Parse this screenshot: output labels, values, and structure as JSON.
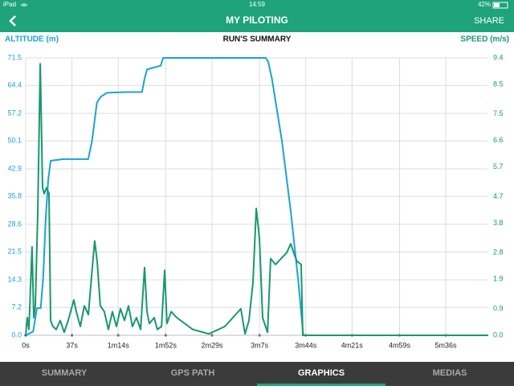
{
  "status_bar": {
    "device": "iPad",
    "time": "14:59",
    "battery": "42%"
  },
  "nav": {
    "title": "MY PILOTING",
    "action": "SHARE"
  },
  "chart_data": {
    "type": "line",
    "title": "RUN'S SUMMARY",
    "y_label": "ALTITUDE (m)",
    "y2_label": "SPEED (m/s)",
    "xlim": [
      0,
      370
    ],
    "xticks": [
      {
        "value": 0,
        "label": "0s"
      },
      {
        "value": 37,
        "label": "37s"
      },
      {
        "value": 74,
        "label": "1m14s"
      },
      {
        "value": 112,
        "label": "1m52s"
      },
      {
        "value": 149,
        "label": "2m29s"
      },
      {
        "value": 187,
        "label": "3m7s"
      },
      {
        "value": 224,
        "label": "3m44s"
      },
      {
        "value": 261,
        "label": "4m21s"
      },
      {
        "value": 299,
        "label": "4m59s"
      },
      {
        "value": 336,
        "label": "5m36s"
      }
    ],
    "ylim": [
      0,
      71.5
    ],
    "yticks": [
      {
        "value": 0,
        "label": "0.0"
      },
      7.2,
      14.3,
      21.5,
      28.6,
      35.8,
      42.9,
      50.1,
      57.2,
      64.4,
      71.5
    ],
    "y2lim": [
      0,
      9.4
    ],
    "y2ticks": [
      {
        "value": 0,
        "label": "0.0"
      },
      0.9,
      1.9,
      2.8,
      3.8,
      4.7,
      5.7,
      6.6,
      7.5,
      8.5,
      9.4
    ],
    "grid": true,
    "y_color": "#1ba3d6",
    "y2_color": "#17996c",
    "series": [
      {
        "color": "#1ba3d6",
        "x": [
          0,
          6,
          9,
          12,
          14,
          16,
          18,
          20,
          30,
          50,
          53,
          57,
          60,
          65,
          80,
          93,
          95,
          97,
          100,
          108,
          110,
          112,
          150,
          192,
          194,
          197,
          205,
          212,
          218,
          222,
          240,
          300,
          370
        ],
        "values": [
          0,
          1,
          7,
          7,
          15,
          30,
          40,
          45,
          45.4,
          45.4,
          50,
          60,
          61.5,
          62.5,
          62.7,
          62.7,
          66,
          68.5,
          68.8,
          69.5,
          71.5,
          71.5,
          71.5,
          71.5,
          70.5,
          66,
          50,
          32,
          14,
          0,
          0,
          0,
          0
        ]
      },
      {
        "color": "#17996c",
        "axis": "y2",
        "x": [
          0,
          1.3,
          2.6,
          5.1,
          6.4,
          7.7,
          9.6,
          11.6,
          13.5,
          14.8,
          16.7,
          18.6,
          19.9,
          21.8,
          24.4,
          27.6,
          30.8,
          34,
          38.5,
          40.5,
          43.7,
          46.9,
          50.1,
          52.7,
          55.2,
          57.2,
          59.7,
          62.9,
          66.1,
          69.4,
          72.6,
          75.8,
          79,
          82.2,
          85.4,
          88.6,
          91.9,
          95.1,
          97,
          98.9,
          102.8,
          105.3,
          108.6,
          111.1,
          113,
          116.3,
          120.8,
          133.6,
          146.5,
          159.3,
          172.1,
          175.4,
          178.6,
          181.8,
          184.4,
          186.9,
          189.5,
          193.4,
          195.9,
          199.8,
          204.3,
          208.8,
          212,
          215.2,
          217.1,
          220.3,
          221.6,
          300,
          370
        ],
        "values": [
          0,
          0.6,
          0.2,
          3,
          0.6,
          1,
          4,
          9.2,
          5,
          4.8,
          5,
          4.8,
          0.5,
          0.3,
          0.2,
          0.5,
          0.1,
          0.5,
          1.2,
          0.8,
          0.3,
          1,
          0.7,
          2,
          3.2,
          2.5,
          1,
          0.8,
          0.2,
          0.8,
          0.3,
          0.9,
          0.5,
          1,
          0.3,
          0.6,
          0.2,
          2.3,
          0.8,
          0.4,
          0.6,
          0.2,
          0.3,
          2.2,
          0.4,
          0.8,
          0.6,
          0.2,
          0.05,
          0.3,
          0.9,
          0.05,
          0.5,
          1.8,
          4.3,
          3.3,
          0.6,
          0.1,
          2.6,
          2.4,
          2.6,
          2.8,
          3.1,
          2.7,
          2.5,
          2.4,
          0,
          0,
          0
        ]
      }
    ]
  },
  "tabs": {
    "items": [
      "SUMMARY",
      "GPS PATH",
      "GRAPHICS",
      "MEDIAS"
    ],
    "selected": 2
  }
}
